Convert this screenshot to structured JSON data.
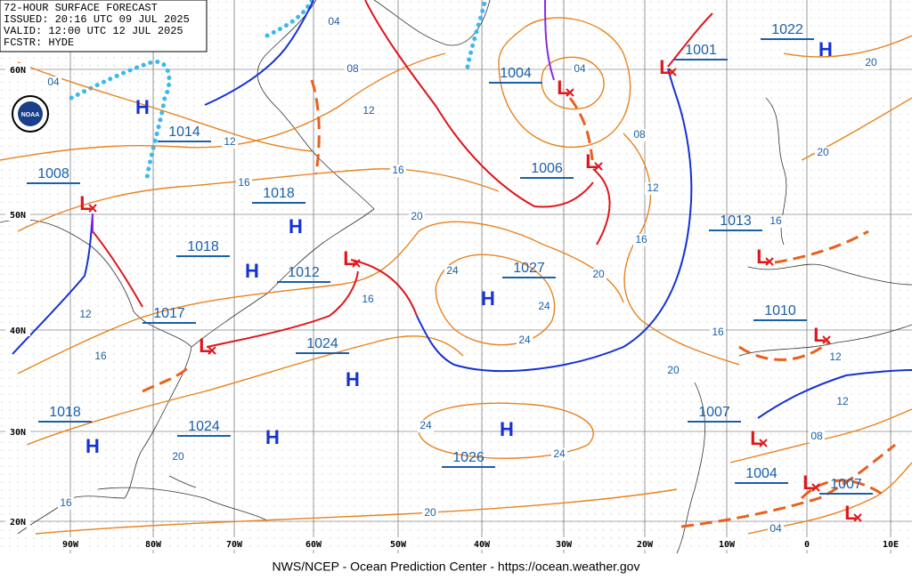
{
  "header": {
    "lines": [
      "72-HOUR SURFACE FORECAST",
      "ISSUED: 20:16 UTC 09 JUL 2025",
      "VALID:  12:00 UTC 12 JUL 2025",
      "FCSTR:  HYDE"
    ]
  },
  "logo": "NOAA",
  "latitude_labels": [
    "60N",
    "50N",
    "40N",
    "30N",
    "20N"
  ],
  "longitude_labels": [
    "90W",
    "80W",
    "70W",
    "60W",
    "50W",
    "40W",
    "30W",
    "20W",
    "10W",
    "0",
    "10E"
  ],
  "pressure_labels": [
    "1008",
    "1014",
    "1018",
    "1018",
    "1012",
    "1017",
    "1024",
    "1018",
    "1024",
    "1004",
    "1006",
    "1027",
    "1026",
    "1001",
    "1022",
    "1013",
    "1010",
    "1007",
    "1004",
    "1007"
  ],
  "highs": [
    "H",
    "H",
    "H",
    "H",
    "H",
    "H",
    "H",
    "H",
    "H"
  ],
  "lows": [
    "L",
    "L",
    "L",
    "L",
    "L",
    "L",
    "L",
    "L",
    "L",
    "L",
    "L"
  ],
  "isobar_labels": [
    "04",
    "04",
    "04",
    "04",
    "08",
    "08",
    "08",
    "12",
    "12",
    "12",
    "12",
    "12",
    "12",
    "16",
    "16",
    "16",
    "16",
    "16",
    "16",
    "16",
    "16",
    "20",
    "20",
    "20",
    "20",
    "20",
    "20",
    "20",
    "24",
    "24",
    "24",
    "24",
    "24"
  ],
  "footer": "NWS/NCEP - Ocean Prediction Center - https://ocean.weather.gov"
}
